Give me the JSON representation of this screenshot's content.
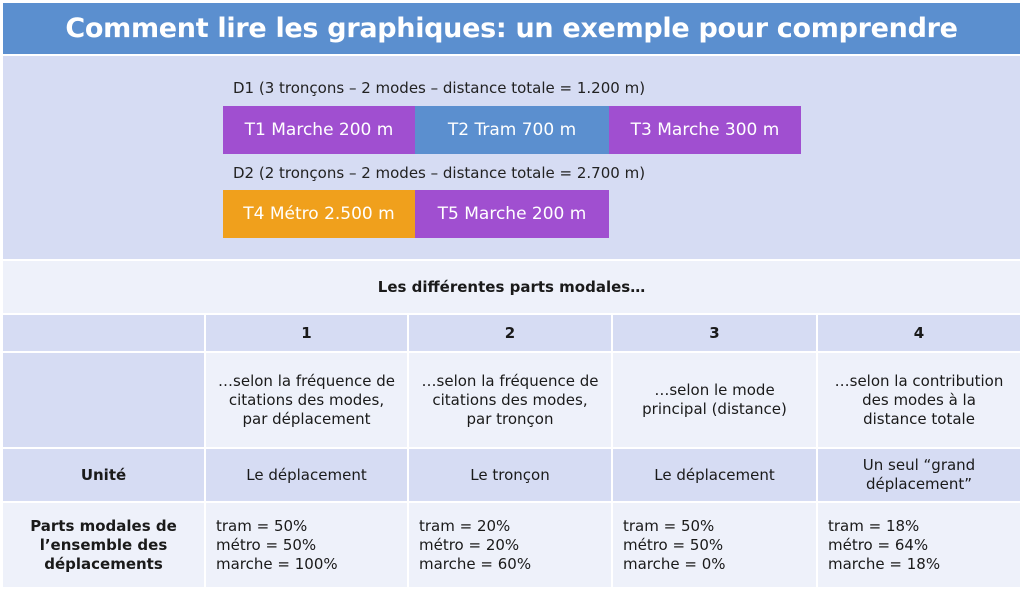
{
  "title": "Comment lire les graphiques: un exemple pour comprendre",
  "trips": [
    {
      "caption": "D1 (3 tronçons – 2 modes – distance totale = 1.200 m)",
      "segments": [
        {
          "label": "T1 Marche 200 m",
          "color": "#a04fd0"
        },
        {
          "label": "T2 Tram 700 m",
          "color": "#5b8fcf"
        },
        {
          "label": "T3 Marche 300 m",
          "color": "#a04fd0"
        }
      ]
    },
    {
      "caption": "D2 (2 tronçons – 2 modes – distance totale = 2.700 m)",
      "segments": [
        {
          "label": "T4 Métro 2.500 m",
          "color": "#f0a01c"
        },
        {
          "label": "T5 Marche 200 m",
          "color": "#a04fd0"
        }
      ]
    }
  ],
  "table": {
    "header": "Les différentes parts modales…",
    "columns": [
      {
        "number": "1",
        "description": "…selon la fréquence de citations des modes, par déplacement",
        "unit": "Le déplacement",
        "shares": [
          "tram = 50%",
          "métro = 50%",
          "marche = 100%"
        ]
      },
      {
        "number": "2",
        "description": "…selon la  fréquence de citations des modes, par tronçon",
        "unit": "Le tronçon",
        "shares": [
          "tram = 20%",
          "métro = 20%",
          "marche = 60%"
        ]
      },
      {
        "number": "3",
        "description": "…selon le mode principal (distance)",
        "unit": "Le déplacement",
        "shares": [
          "tram = 50%",
          "métro = 50%",
          "marche = 0%"
        ]
      },
      {
        "number": "4",
        "description": "…selon la contribution des modes à la distance totale",
        "unit": "Un seul “grand déplacement”",
        "shares": [
          "tram = 18%",
          "métro = 64%",
          "marche = 18%"
        ]
      }
    ],
    "row_labels": {
      "unit": "Unité",
      "shares": "Parts modales de l’ensemble des déplacements"
    }
  },
  "colors": {
    "title_bar": "#5b8fcf",
    "walk": "#a04fd0",
    "tram": "#5b8fcf",
    "metro": "#f0a01c",
    "panel": "#d6dcf3",
    "cell_light": "#eef1fa"
  }
}
